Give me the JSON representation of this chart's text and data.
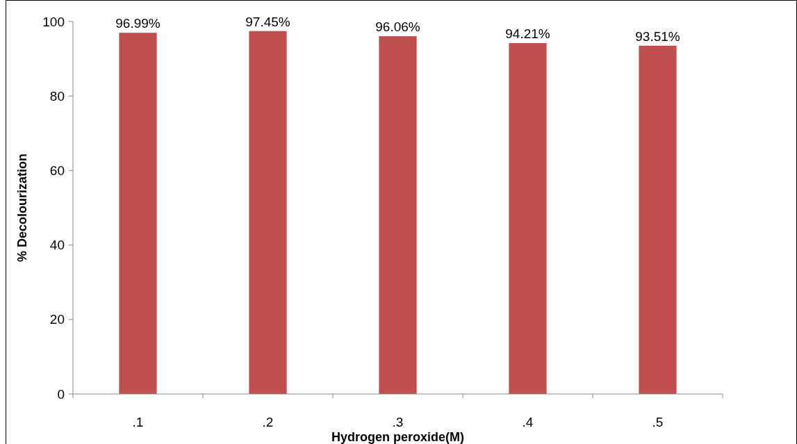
{
  "chart_data": {
    "type": "bar",
    "xlabel": "Hydrogen peroxide(M)",
    "ylabel": "% Decolourization",
    "categories": [
      ".1",
      ".2",
      ".3",
      ".4",
      ".5"
    ],
    "values": [
      96.99,
      97.45,
      96.06,
      94.21,
      93.51
    ],
    "color": "#c0504d",
    "value_labels": [
      "96.99%",
      "97.45%",
      "96.06%",
      "94.21%",
      "93.51%"
    ],
    "ylim": [
      0,
      100
    ],
    "yticks": [
      0,
      20,
      40,
      60,
      80,
      100
    ],
    "grid": false
  }
}
